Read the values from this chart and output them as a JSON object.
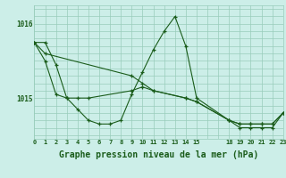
{
  "background_color": "#cceee8",
  "grid_color": "#99ccbb",
  "line_color": "#1a5c1a",
  "xlabel": "Graphe pression niveau de la mer (hPa)",
  "xlabel_fontsize": 7.0,
  "yticks": [
    1015,
    1016
  ],
  "xlim": [
    0,
    23
  ],
  "ylim": [
    1014.45,
    1016.25
  ],
  "line1_x": [
    0,
    1,
    2,
    3,
    4,
    5,
    6,
    7,
    8,
    9,
    10,
    11,
    12,
    13,
    14,
    15,
    18,
    19,
    20,
    21,
    22,
    23
  ],
  "line1_y": [
    1015.75,
    1015.75,
    1015.45,
    1015.0,
    1014.85,
    1014.7,
    1014.65,
    1014.65,
    1014.7,
    1015.05,
    1015.35,
    1015.65,
    1015.9,
    1016.1,
    1015.7,
    1015.0,
    1014.7,
    1014.6,
    1014.6,
    1014.6,
    1014.6,
    1014.8
  ],
  "line2_x": [
    0,
    1,
    9,
    10,
    11,
    14,
    15,
    18,
    19,
    20,
    21,
    22,
    23
  ],
  "line2_y": [
    1015.75,
    1015.6,
    1015.3,
    1015.2,
    1015.1,
    1015.0,
    1014.95,
    1014.7,
    1014.65,
    1014.65,
    1014.65,
    1014.65,
    1014.8
  ],
  "line3_x": [
    0,
    1,
    2,
    3,
    4,
    5,
    9,
    10,
    11,
    14,
    15,
    18,
    19,
    20,
    21,
    22,
    23
  ],
  "line3_y": [
    1015.75,
    1015.5,
    1015.05,
    1015.0,
    1015.0,
    1015.0,
    1015.1,
    1015.15,
    1015.1,
    1015.0,
    1014.95,
    1014.7,
    1014.65,
    1014.65,
    1014.65,
    1014.65,
    1014.8
  ],
  "xtick_labels": [
    "0",
    "1",
    "2",
    "3",
    "4",
    "5",
    "6",
    "7",
    "8",
    "9",
    "10",
    "11",
    "12",
    "13",
    "14",
    "15",
    "",
    "",
    "18",
    "19",
    "20",
    "21",
    "22",
    "23"
  ],
  "xtick_positions": [
    0,
    1,
    2,
    3,
    4,
    5,
    6,
    7,
    8,
    9,
    10,
    11,
    12,
    13,
    14,
    15,
    16,
    17,
    18,
    19,
    20,
    21,
    22,
    23
  ]
}
